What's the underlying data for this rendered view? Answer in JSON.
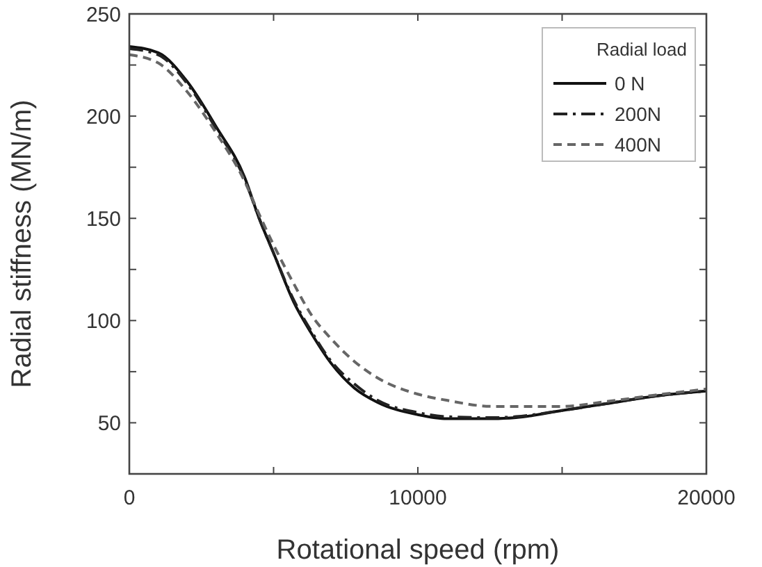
{
  "chart_data": {
    "type": "line",
    "xlabel": "Rotational speed (rpm)",
    "ylabel": "Radial stiffness (MN/m)",
    "legend_title": "Radial load",
    "legend": "top right",
    "grid": false,
    "xlim": [
      0,
      20000
    ],
    "xticks": [
      0,
      {
        "value": 5000,
        "label": null
      },
      10000,
      {
        "value": 15000,
        "label": null
      },
      20000
    ],
    "ylim": [
      25,
      250
    ],
    "yticks": [
      50,
      {
        "value": 75,
        "label": null
      },
      100,
      {
        "value": 125,
        "label": null
      },
      150,
      {
        "value": 175,
        "label": null
      },
      200,
      {
        "value": 225,
        "label": null
      },
      250
    ],
    "x": [
      0,
      1000,
      2000,
      3000,
      4000,
      4500,
      5000,
      5700,
      6300,
      7000,
      7800,
      8600,
      10000,
      11000,
      12600,
      13400,
      15000,
      16600,
      18200,
      20000
    ],
    "series": [
      {
        "name": "0 N",
        "color": "#111111",
        "line_style": "solid",
        "values": [
          234,
          231,
          217,
          195,
          170,
          150,
          133,
          109,
          94,
          79,
          67,
          60,
          54,
          52,
          52,
          52.5,
          56,
          59.5,
          63,
          65.5
        ]
      },
      {
        "name": "200N",
        "color": "#222222",
        "line_style": "dashdot",
        "values": [
          233,
          230,
          216,
          194,
          169,
          150,
          133,
          110,
          95,
          80,
          69,
          61,
          55,
          53,
          52.5,
          53,
          56,
          59.5,
          63,
          65.5
        ]
      },
      {
        "name": "400N",
        "color": "#666666",
        "line_style": "dashed",
        "values": [
          230,
          226,
          212,
          192,
          168,
          152,
          137,
          118,
          103,
          91,
          80,
          72,
          64,
          61,
          58,
          58,
          58,
          60.5,
          63.5,
          66.5
        ]
      }
    ]
  }
}
